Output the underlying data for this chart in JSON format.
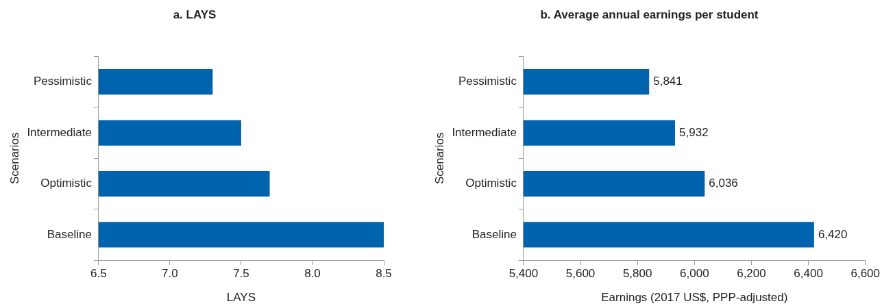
{
  "chart_data": [
    {
      "type": "bar",
      "orientation": "horizontal",
      "title": "a. LAYS",
      "xlabel": "LAYS",
      "ylabel": "Scenarios",
      "categories": [
        "Pessimistic",
        "Intermediate",
        "Optimistic",
        "Baseline"
      ],
      "values": [
        7.3,
        7.5,
        7.7,
        8.5
      ],
      "color": "#0063ad",
      "xlim": [
        6.5,
        8.5
      ],
      "xticks": [
        {
          "value": 6.5,
          "label": "6.5"
        },
        {
          "value": 7,
          "label": "7.0"
        },
        {
          "value": 7.5,
          "label": "7.5"
        },
        {
          "value": 8,
          "label": "8.0"
        },
        {
          "value": 8.5,
          "label": "8.5"
        }
      ],
      "grid": false,
      "legend": false
    },
    {
      "type": "bar",
      "orientation": "horizontal",
      "title": "b. Average annual earnings per student",
      "xlabel": "Earnings (2017 US$, PPP-adjusted)",
      "ylabel": "Scenarios",
      "categories": [
        "Pessimistic",
        "Intermediate",
        "Optimistic",
        "Baseline"
      ],
      "values": [
        5841,
        5932,
        6036,
        6420
      ],
      "value_labels": [
        "5,841",
        "5,932",
        "6,036",
        "6,420"
      ],
      "color": "#0063ad",
      "xlim": [
        5400,
        6600
      ],
      "xticks": [
        {
          "value": 5400,
          "label": "5,400"
        },
        {
          "value": 5600,
          "label": "5,600"
        },
        {
          "value": 5800,
          "label": "5,800"
        },
        {
          "value": 6000,
          "label": "6,000"
        },
        {
          "value": 6200,
          "label": "6,200"
        },
        {
          "value": 6400,
          "label": "6,400"
        },
        {
          "value": 6600,
          "label": "6,600"
        }
      ],
      "grid": false,
      "legend": false
    }
  ]
}
